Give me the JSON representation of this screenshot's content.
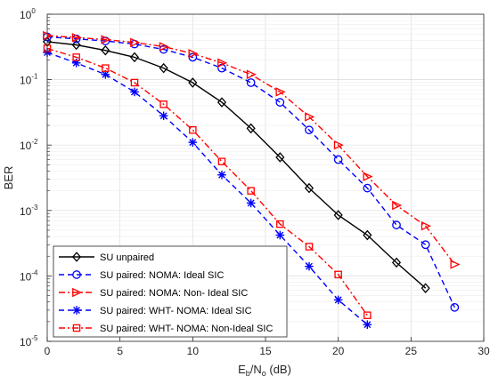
{
  "chart_data": {
    "type": "line",
    "xlabel_main": "E",
    "xlabel_sub1": "b",
    "xlabel_mid": "/N",
    "xlabel_sub2": "o",
    "xlabel_tail": " (dB)",
    "ylabel": "BER",
    "xlim": [
      0,
      30
    ],
    "ylim": [
      1e-05,
      1
    ],
    "yscale": "log",
    "grid": true,
    "legend_position": "bottom-left",
    "x_ticks": [
      "0",
      "5",
      "10",
      "15",
      "20",
      "25",
      "30"
    ],
    "y_ticks": [
      {
        "base": "10",
        "exp": "0"
      },
      {
        "base": "10",
        "exp": "-1"
      },
      {
        "base": "10",
        "exp": "-2"
      },
      {
        "base": "10",
        "exp": "-3"
      },
      {
        "base": "10",
        "exp": "-4"
      },
      {
        "base": "10",
        "exp": "-5"
      }
    ],
    "series": [
      {
        "name": "SU unpaired",
        "color": "#000000",
        "dash": "solid",
        "marker": "diamond",
        "points": [
          [
            0,
            0.38
          ],
          [
            2,
            0.34
          ],
          [
            4,
            0.28
          ],
          [
            6,
            0.22
          ],
          [
            8,
            0.15
          ],
          [
            10,
            0.09
          ],
          [
            12,
            0.045
          ],
          [
            14,
            0.018
          ],
          [
            16,
            0.0065
          ],
          [
            18,
            0.0022
          ],
          [
            20,
            0.00085
          ],
          [
            22,
            0.00042
          ],
          [
            24,
            0.00016
          ],
          [
            26,
            6.5e-05
          ]
        ]
      },
      {
        "name": "SU paired: NOMA: Ideal SIC",
        "color": "#0000ff",
        "dash": "dashed",
        "marker": "circle",
        "points": [
          [
            0,
            0.45
          ],
          [
            2,
            0.42
          ],
          [
            4,
            0.39
          ],
          [
            6,
            0.35
          ],
          [
            8,
            0.29
          ],
          [
            10,
            0.22
          ],
          [
            12,
            0.15
          ],
          [
            14,
            0.09
          ],
          [
            16,
            0.045
          ],
          [
            18,
            0.017
          ],
          [
            20,
            0.006
          ],
          [
            22,
            0.0022
          ],
          [
            24,
            0.0006
          ],
          [
            26,
            0.0003
          ],
          [
            28,
            3.3e-05
          ]
        ]
      },
      {
        "name": "SU paired: NOMA: Non- Ideal SIC",
        "color": "#ff0000",
        "dash": "dashdot",
        "marker": "triangle-right",
        "points": [
          [
            0,
            0.47
          ],
          [
            2,
            0.44
          ],
          [
            4,
            0.41
          ],
          [
            6,
            0.37
          ],
          [
            8,
            0.32
          ],
          [
            10,
            0.25
          ],
          [
            12,
            0.18
          ],
          [
            14,
            0.12
          ],
          [
            16,
            0.065
          ],
          [
            18,
            0.027
          ],
          [
            20,
            0.01
          ],
          [
            22,
            0.0033
          ],
          [
            24,
            0.0012
          ],
          [
            26,
            0.00058
          ],
          [
            28,
            0.00015
          ]
        ]
      },
      {
        "name": "SU paired: WHT- NOMA: Ideal SIC",
        "color": "#0000ff",
        "dash": "dashed",
        "marker": "asterisk",
        "points": [
          [
            0,
            0.26
          ],
          [
            2,
            0.18
          ],
          [
            4,
            0.12
          ],
          [
            6,
            0.065
          ],
          [
            8,
            0.028
          ],
          [
            10,
            0.011
          ],
          [
            12,
            0.0035
          ],
          [
            14,
            0.0013
          ],
          [
            16,
            0.00042
          ],
          [
            18,
            0.00014
          ],
          [
            20,
            4.3e-05
          ],
          [
            22,
            1.8e-05
          ]
        ]
      },
      {
        "name": "SU paired: WHT- NOMA: Non-Ideal SIC",
        "color": "#ff0000",
        "dash": "dashdot",
        "marker": "square",
        "points": [
          [
            0,
            0.3
          ],
          [
            2,
            0.22
          ],
          [
            4,
            0.15
          ],
          [
            6,
            0.09
          ],
          [
            8,
            0.042
          ],
          [
            10,
            0.017
          ],
          [
            12,
            0.0056
          ],
          [
            14,
            0.002
          ],
          [
            16,
            0.00062
          ],
          [
            18,
            0.00028
          ],
          [
            20,
            0.000105
          ],
          [
            22,
            2.5e-05
          ]
        ]
      }
    ]
  }
}
